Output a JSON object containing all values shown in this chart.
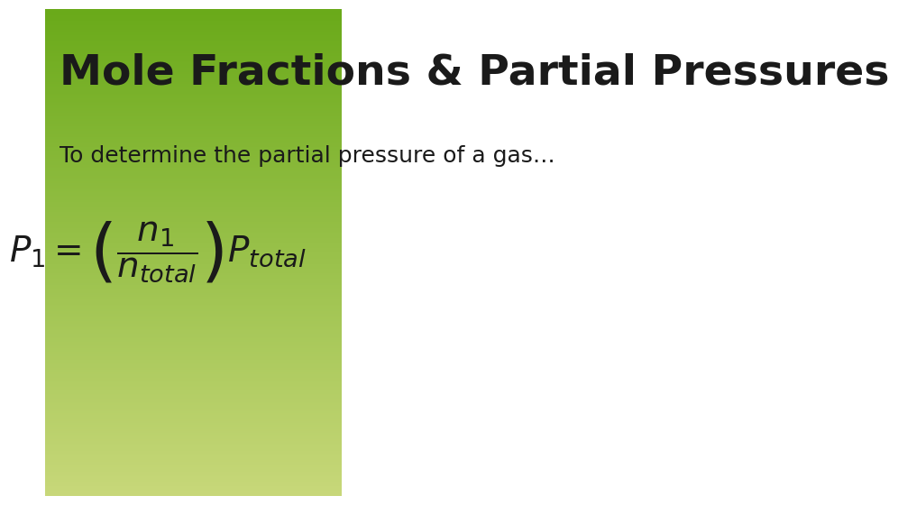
{
  "title": "Mole Fractions & Partial Pressures",
  "subtitle": "To determine the partial pressure of a gas…",
  "formula": "P_1 = \\left(\\dfrac{n_1}{n_{total}}\\right)P_{total}",
  "bg_color_top": "#6aaa1a",
  "bg_color_bottom": "#c8d87a",
  "title_color": "#1a1a1a",
  "text_color": "#1a1a1a",
  "title_fontsize": 34,
  "subtitle_fontsize": 18,
  "formula_fontsize": 28
}
